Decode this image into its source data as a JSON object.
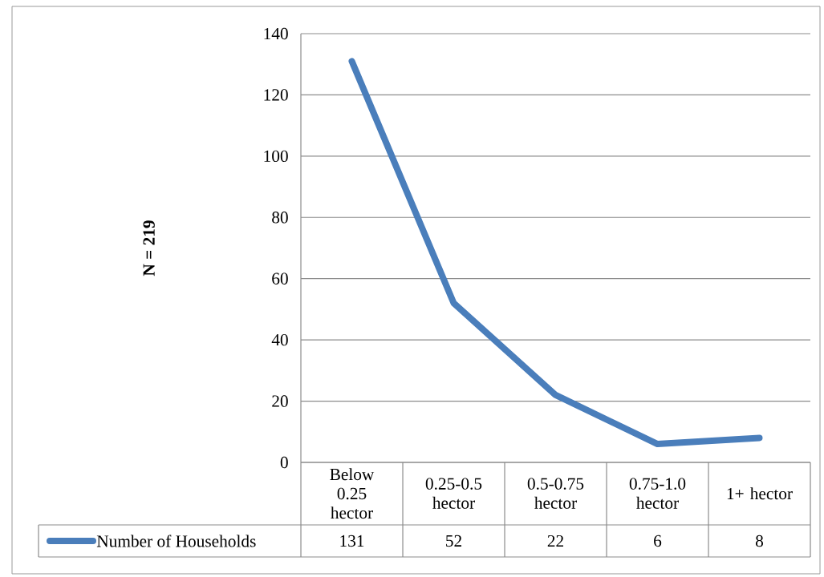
{
  "chart_data": {
    "type": "line",
    "annotations": [
      "N = 219"
    ],
    "categories": [
      "Below 0.25 hector",
      "0.25-0.5 hector",
      "0.5-0.75 hector",
      "0.75-1.0 hector",
      "1+ hector"
    ],
    "series": [
      {
        "name": "Number of Households",
        "color": "#4a7ebb",
        "values": [
          131,
          52,
          22,
          6,
          8
        ]
      }
    ],
    "ylim": [
      0,
      140
    ],
    "yticks": [
      0,
      20,
      40,
      60,
      80,
      100,
      120,
      140
    ],
    "grid": "y",
    "legend": "bottom left",
    "data_labels": true,
    "marker": "none",
    "line_style": "solid"
  }
}
